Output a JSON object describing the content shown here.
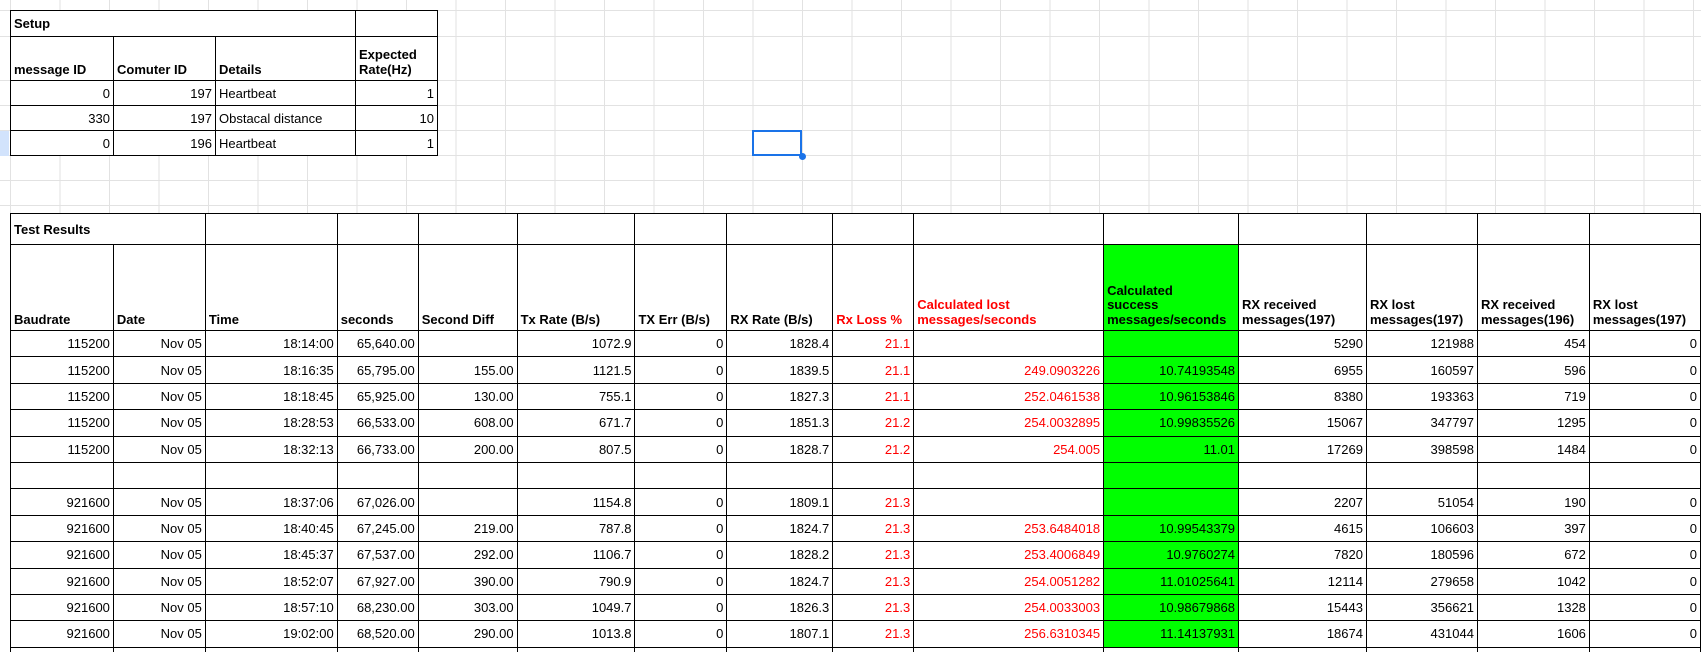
{
  "colors": {
    "selection_blue": "#1a73e8",
    "highlight_green": "#00ff00",
    "alert_red": "#ff0000",
    "gridline": "#e2e2e2"
  },
  "setup": {
    "title": "Setup",
    "columns": [
      "message ID",
      "Comuter ID",
      "Details",
      "Expected Rate(Hz)"
    ],
    "rows": [
      [
        "0",
        "197",
        "Heartbeat",
        "1"
      ],
      [
        "330",
        "197",
        "Obstacal distance",
        "10"
      ],
      [
        "0",
        "196",
        "Heartbeat",
        "1"
      ]
    ]
  },
  "test_results": {
    "title": "Test Results",
    "columns": [
      "Baudrate",
      "Date",
      "Time",
      "seconds",
      "Second Diff",
      "Tx Rate (B/s)",
      "TX Err (B/s)",
      "RX Rate (B/s)",
      "Rx Loss %",
      "Calculated lost messages/seconds",
      "Calculated success messages/seconds",
      "RX  received messages(197)",
      "RX lost messages(197)",
      "RX  received messages(196)",
      "RX lost messages(197)"
    ],
    "rows": [
      [
        "115200",
        "Nov 05",
        "18:14:00",
        "65,640.00",
        "",
        "1072.9",
        "0",
        "1828.4",
        "21.1",
        "",
        "",
        "5290",
        "121988",
        "454",
        "0"
      ],
      [
        "115200",
        "Nov 05",
        "18:16:35",
        "65,795.00",
        "155.00",
        "1121.5",
        "0",
        "1839.5",
        "21.1",
        "249.0903226",
        "10.74193548",
        "6955",
        "160597",
        "596",
        "0"
      ],
      [
        "115200",
        "Nov 05",
        "18:18:45",
        "65,925.00",
        "130.00",
        "755.1",
        "0",
        "1827.3",
        "21.1",
        "252.0461538",
        "10.96153846",
        "8380",
        "193363",
        "719",
        "0"
      ],
      [
        "115200",
        "Nov 05",
        "18:28:53",
        "66,533.00",
        "608.00",
        "671.7",
        "0",
        "1851.3",
        "21.2",
        "254.0032895",
        "10.99835526",
        "15067",
        "347797",
        "1295",
        "0"
      ],
      [
        "115200",
        "Nov 05",
        "18:32:13",
        "66,733.00",
        "200.00",
        "807.5",
        "0",
        "1828.7",
        "21.2",
        "254.005",
        "11.01",
        "17269",
        "398598",
        "1484",
        "0"
      ],
      [
        "",
        "",
        "",
        "",
        "",
        "",
        "",
        "",
        "",
        "",
        "",
        "",
        "",
        "",
        ""
      ],
      [
        "921600",
        "Nov 05",
        "18:37:06",
        "67,026.00",
        "",
        "1154.8",
        "0",
        "1809.1",
        "21.3",
        "",
        "",
        "2207",
        "51054",
        "190",
        "0"
      ],
      [
        "921600",
        "Nov 05",
        "18:40:45",
        "67,245.00",
        "219.00",
        "787.8",
        "0",
        "1824.7",
        "21.3",
        "253.6484018",
        "10.99543379",
        "4615",
        "106603",
        "397",
        "0"
      ],
      [
        "921600",
        "Nov 05",
        "18:45:37",
        "67,537.00",
        "292.00",
        "1106.7",
        "0",
        "1828.2",
        "21.3",
        "253.4006849",
        "10.9760274",
        "7820",
        "180596",
        "672",
        "0"
      ],
      [
        "921600",
        "Nov 05",
        "18:52:07",
        "67,927.00",
        "390.00",
        "790.9",
        "0",
        "1824.7",
        "21.3",
        "254.0051282",
        "11.01025641",
        "12114",
        "279658",
        "1042",
        "0"
      ],
      [
        "921600",
        "Nov 05",
        "18:57:10",
        "68,230.00",
        "303.00",
        "1049.7",
        "0",
        "1826.3",
        "21.3",
        "254.0033003",
        "10.98679868",
        "15443",
        "356621",
        "1328",
        "0"
      ],
      [
        "921600",
        "Nov 05",
        "19:02:00",
        "68,520.00",
        "290.00",
        "1013.8",
        "0",
        "1807.1",
        "21.3",
        "256.6310345",
        "11.14137931",
        "18674",
        "431044",
        "1606",
        "0"
      ]
    ]
  }
}
